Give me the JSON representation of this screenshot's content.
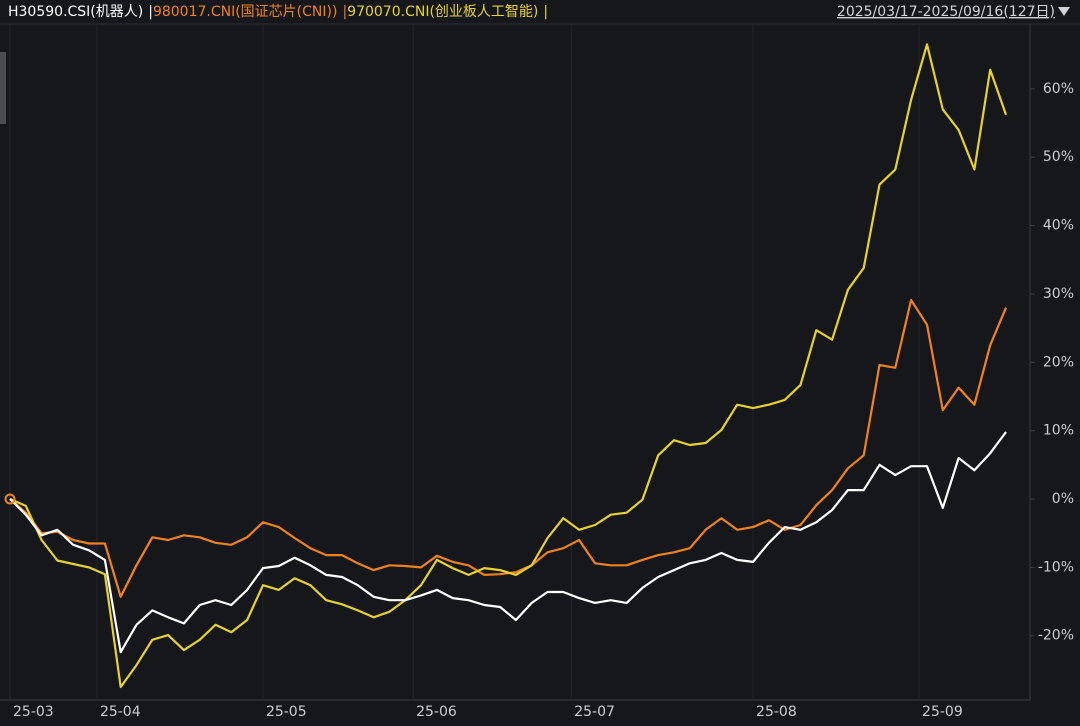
{
  "chart_data": {
    "type": "line",
    "separator": "|",
    "range_label": "2025/03/17-2025/09/16(127日)",
    "x": [
      0,
      2,
      4,
      6,
      8,
      10,
      12,
      14,
      16,
      18,
      20,
      22,
      24,
      26,
      28,
      30,
      32,
      34,
      36,
      38,
      40,
      42,
      44,
      46,
      48,
      50,
      52,
      54,
      56,
      58,
      60,
      62,
      64,
      66,
      68,
      70,
      72,
      74,
      76,
      78,
      80,
      82,
      84,
      86,
      88,
      90,
      92,
      94,
      96,
      98,
      100,
      102,
      104,
      106,
      108,
      110,
      112,
      114,
      116,
      118,
      120,
      122,
      124,
      126
    ],
    "xlim": [
      0,
      126
    ],
    "xticks": [
      {
        "value": 0,
        "label": "25-03"
      },
      {
        "value": 11,
        "label": "25-04"
      },
      {
        "value": 32,
        "label": "25-05"
      },
      {
        "value": 51,
        "label": "25-06"
      },
      {
        "value": 71,
        "label": "25-07"
      },
      {
        "value": 94,
        "label": "25-08"
      },
      {
        "value": 115,
        "label": "25-09"
      }
    ],
    "ylim": [
      -29.4,
      73
    ],
    "yticks": [
      {
        "value": 60,
        "label": "60%"
      },
      {
        "value": 50,
        "label": "50%"
      },
      {
        "value": 40,
        "label": "40%"
      },
      {
        "value": 30,
        "label": "30%"
      },
      {
        "value": 20,
        "label": "20%"
      },
      {
        "value": 10,
        "label": "10%"
      },
      {
        "value": 0,
        "label": "0%"
      },
      {
        "value": -10,
        "label": "-10%"
      },
      {
        "value": -20,
        "label": "-20%"
      }
    ],
    "grid": true,
    "series": [
      {
        "name": "H30590.CSI(机器人)",
        "color": "#ffffff",
        "values": [
          0,
          -2.3,
          -5.3,
          -4.5,
          -6.7,
          -7.5,
          -8.9,
          -22.4,
          -18.4,
          -16.3,
          -17.3,
          -18.2,
          -15.5,
          -14.8,
          -15.5,
          -13.3,
          -10.1,
          -9.8,
          -8.6,
          -9.7,
          -11.1,
          -11.4,
          -12.6,
          -14.3,
          -14.8,
          -14.8,
          -14.1,
          -13.3,
          -14.5,
          -14.8,
          -15.5,
          -15.8,
          -17.7,
          -15.2,
          -13.6,
          -13.6,
          -14.5,
          -15.2,
          -14.8,
          -15.2,
          -13.0,
          -11.4,
          -10.4,
          -9.4,
          -8.9,
          -7.9,
          -8.9,
          -9.2,
          -6.4,
          -4.1,
          -4.5,
          -3.4,
          -1.6,
          1.3,
          1.3,
          5.0,
          3.5,
          4.8,
          4.8,
          -1.3,
          6.0,
          4.2,
          6.7,
          9.8
        ]
      },
      {
        "name": "980017.CNI(国证芯片(CNI))",
        "color": "#f0821e",
        "values": [
          0,
          -2,
          -5,
          -4.8,
          -6,
          -6.5,
          -6.5,
          -14.3,
          -9.7,
          -5.6,
          -6.0,
          -5.3,
          -5.6,
          -6.4,
          -6.7,
          -5.6,
          -3.4,
          -4.1,
          -5.7,
          -7.2,
          -8.2,
          -8.2,
          -9.4,
          -10.4,
          -9.7,
          -9.8,
          -10.0,
          -8.3,
          -9.2,
          -9.7,
          -11.1,
          -11.0,
          -10.7,
          -9.7,
          -7.8,
          -7.2,
          -6.0,
          -9.4,
          -9.7,
          -9.7,
          -8.9,
          -8.2,
          -7.8,
          -7.2,
          -4.5,
          -2.8,
          -4.5,
          -4.1,
          -3.1,
          -4.5,
          -3.8,
          -0.9,
          1.3,
          4.5,
          6.4,
          19.6,
          19.2,
          29.1,
          25.5,
          13.0,
          16.3,
          13.8,
          22.5,
          28.0
        ]
      },
      {
        "name": "970070.CNI(创业板人工智能)",
        "color": "#e6d22d",
        "values": [
          0,
          -1,
          -6,
          -9,
          -9.5,
          -10,
          -11,
          -27.5,
          -24.3,
          -20.6,
          -19.9,
          -22.1,
          -20.6,
          -18.4,
          -19.5,
          -17.7,
          -12.6,
          -13.3,
          -11.6,
          -12.6,
          -14.8,
          -15.4,
          -16.3,
          -17.3,
          -16.5,
          -14.8,
          -12.6,
          -8.9,
          -10.1,
          -11.1,
          -10.1,
          -10.4,
          -11.1,
          -9.7,
          -5.7,
          -2.8,
          -4.5,
          -3.8,
          -2.3,
          -2.0,
          -0.1,
          6.4,
          8.6,
          7.9,
          8.2,
          10.1,
          13.8,
          13.3,
          13.8,
          14.5,
          16.7,
          24.7,
          23.3,
          30.6,
          33.8,
          46.0,
          48.2,
          58.4,
          66.5,
          57.0,
          54.0,
          48.2,
          62.8,
          56.2
        ]
      }
    ]
  }
}
